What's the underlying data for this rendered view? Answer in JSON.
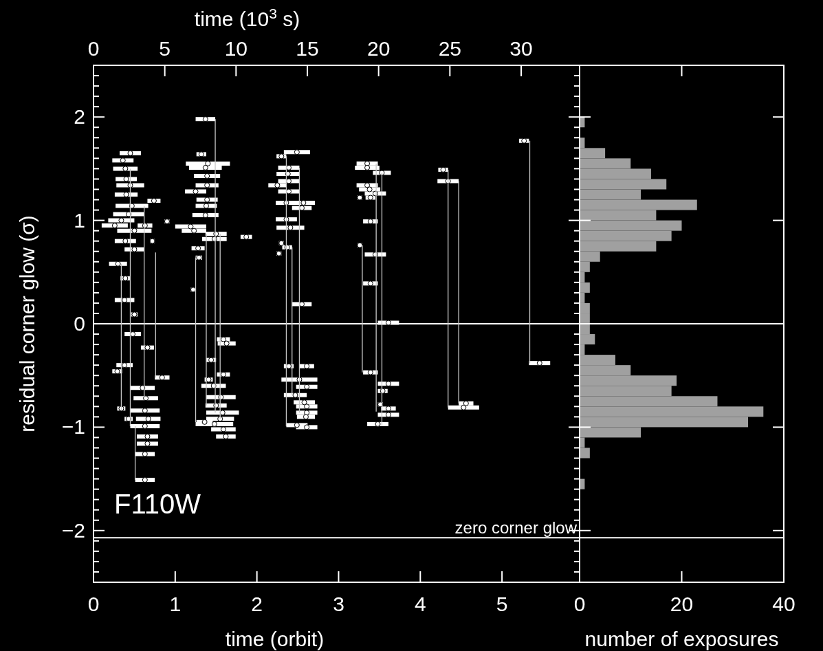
{
  "chart_data": [
    {
      "type": "scatter",
      "xlabel": "time (orbit)",
      "ylabel": "residual corner glow (σ)",
      "x2label": "time (10$^{3}$ s)",
      "xlim": [
        0,
        5.95
      ],
      "xticks": [
        0,
        1,
        2,
        3,
        4,
        5
      ],
      "x2lim": [
        0,
        34.1
      ],
      "x2ticks": [
        0,
        5,
        10,
        15,
        20,
        25,
        30
      ],
      "ylim": [
        -2.5,
        2.5
      ],
      "yticks": [
        {
          "value": -2.5,
          "label": null
        },
        {
          "value": -2.4,
          "label": null
        },
        {
          "value": -2.3,
          "label": null
        },
        {
          "value": -2.2,
          "label": null
        },
        {
          "value": -2.1,
          "label": null
        },
        -2,
        {
          "value": -1.9,
          "label": null
        },
        {
          "value": -1.8,
          "label": null
        },
        {
          "value": -1.7,
          "label": null
        },
        {
          "value": -1.6,
          "label": null
        },
        {
          "value": -1.5,
          "label": null
        },
        {
          "value": -1.4,
          "label": null
        },
        {
          "value": -1.3,
          "label": null
        },
        {
          "value": -1.2,
          "label": null
        },
        {
          "value": -1.1,
          "label": null
        },
        -1,
        {
          "value": -0.9,
          "label": null
        },
        {
          "value": -0.8,
          "label": null
        },
        {
          "value": -0.7,
          "label": null
        },
        {
          "value": -0.6,
          "label": null
        },
        {
          "value": -0.5,
          "label": null
        },
        {
          "value": -0.4,
          "label": null
        },
        {
          "value": -0.3,
          "label": null
        },
        {
          "value": -0.2,
          "label": null
        },
        {
          "value": -0.1,
          "label": null
        },
        0,
        {
          "value": 0.1,
          "label": null
        },
        {
          "value": 0.2,
          "label": null
        },
        {
          "value": 0.3,
          "label": null
        },
        {
          "value": 0.4,
          "label": null
        },
        {
          "value": 0.5,
          "label": null
        },
        {
          "value": 0.6,
          "label": null
        },
        {
          "value": 0.7,
          "label": null
        },
        {
          "value": 0.8,
          "label": null
        },
        {
          "value": 0.9,
          "label": null
        },
        1,
        {
          "value": 1.1,
          "label": null
        },
        {
          "value": 1.2,
          "label": null
        },
        {
          "value": 1.3,
          "label": null
        },
        {
          "value": 1.4,
          "label": null
        },
        {
          "value": 1.5,
          "label": null
        },
        {
          "value": 1.6,
          "label": null
        },
        {
          "value": 1.7,
          "label": null
        },
        {
          "value": 1.8,
          "label": null
        },
        {
          "value": 1.9,
          "label": null
        },
        2,
        {
          "value": 2.1,
          "label": null
        },
        {
          "value": 2.2,
          "label": null
        },
        {
          "value": 2.3,
          "label": null
        },
        {
          "value": 2.4,
          "label": null
        },
        {
          "value": 2.5,
          "label": null
        }
      ],
      "annotations": [
        "F110W"
      ],
      "ref_lines": [
        {
          "axis": "y",
          "value": 0,
          "color": "#ffffff"
        },
        {
          "axis": "y",
          "value": -2.07,
          "label": "zero corner glow",
          "color": "#ffffff"
        }
      ],
      "series": [
        {
          "type": "line",
          "color": "#c8c8c8",
          "x": [
            5.34,
            5.34,
            null,
            4.47,
            4.47,
            null,
            4.34,
            4.34,
            null,
            3.29,
            3.29,
            null,
            3.46,
            3.46,
            null,
            3.53,
            3.53,
            null,
            2.36,
            2.36,
            null,
            2.52,
            2.52,
            null,
            2.43,
            2.43,
            null,
            1.49,
            1.49,
            null,
            1.25,
            1.25,
            null,
            1.38,
            1.38,
            null,
            1.55,
            1.55,
            null,
            0.51,
            0.51,
            null,
            0.62,
            0.62,
            null,
            0.76,
            0.76,
            null,
            0.34,
            0.34,
            null,
            0.45,
            0.45
          ],
          "values": [
            1.77,
            -0.38,
            null,
            1.38,
            -0.77,
            null,
            1.49,
            -0.81,
            null,
            0.76,
            -0.47,
            null,
            1.55,
            -0.85,
            null,
            1.46,
            -0.98,
            null,
            1.62,
            -0.99,
            null,
            1.51,
            -0.86,
            null,
            0.74,
            -0.69,
            null,
            1.98,
            -0.86,
            null,
            0.64,
            -0.95,
            null,
            0.87,
            -0.79,
            null,
            0.87,
            -0.92,
            null,
            -0.99,
            -1.51,
            null,
            1.14,
            -0.72,
            null,
            0.69,
            -0.52,
            null,
            0.58,
            -0.84,
            null,
            1.5,
            -0.99
          ]
        },
        {
          "type": "scatter",
          "color": "#ffffff",
          "x": [
            0.45,
            0.36,
            0.39,
            0.4,
            0.45,
            0.4,
            0.74,
            0.47,
            0.43,
            0.34,
            0.26,
            0.63,
            0.5,
            0.39,
            0.72,
            0.5,
            0.3,
            0.39,
            0.38,
            0.5,
            0.48,
            0.66,
            0.38,
            0.29,
            0.84,
            0.6,
            0.64,
            0.34,
            0.63,
            0.43,
            0.67,
            0.63,
            0.66,
            0.66,
            0.63,
            0.63,
            0.9,
            1.37,
            1.32,
            1.4,
            1.37,
            1.39,
            1.39,
            1.25,
            1.39,
            1.38,
            1.37,
            1.19,
            1.23,
            1.5,
            1.48,
            1.28,
            1.29,
            1.87,
            1.22,
            1.59,
            1.63,
            1.44,
            1.59,
            1.41,
            1.47,
            1.56,
            1.5,
            1.58,
            1.55,
            1.36,
            1.48,
            1.59,
            1.62,
            2.49,
            2.3,
            2.39,
            2.38,
            2.39,
            2.25,
            2.39,
            2.36,
            2.57,
            2.55,
            2.36,
            2.41,
            2.3,
            2.37,
            2.27,
            2.55,
            2.39,
            2.61,
            2.52,
            2.61,
            2.47,
            2.58,
            2.61,
            2.61,
            2.6,
            2.49,
            2.61,
            3.35,
            3.35,
            3.53,
            3.35,
            3.38,
            3.45,
            3.26,
            3.39,
            3.39,
            3.26,
            3.45,
            3.39,
            3.61,
            3.39,
            3.61,
            3.54,
            3.51,
            3.61,
            3.61,
            3.48,
            4.28,
            4.34,
            4.56,
            4.53,
            5.27,
            5.46
          ],
          "values": [
            1.65,
            1.58,
            1.5,
            1.4,
            1.34,
            1.25,
            1.19,
            1.14,
            1.06,
            1.0,
            0.95,
            0.95,
            0.9,
            0.8,
            0.8,
            0.72,
            0.58,
            0.44,
            0.23,
            0.09,
            -0.1,
            -0.23,
            -0.4,
            -0.46,
            -0.52,
            -0.62,
            -0.72,
            -0.82,
            -0.84,
            -0.92,
            -0.92,
            -0.99,
            -1.09,
            -1.16,
            -1.26,
            -1.51,
            0.99,
            1.98,
            1.64,
            1.55,
            1.51,
            1.43,
            1.34,
            1.28,
            1.2,
            1.14,
            1.05,
            0.94,
            0.9,
            0.87,
            0.82,
            0.73,
            0.64,
            0.84,
            0.33,
            -0.15,
            -0.19,
            -0.35,
            -0.49,
            -0.54,
            -0.6,
            -0.71,
            -0.79,
            -0.86,
            -0.92,
            -0.95,
            -0.97,
            -1.02,
            -1.09,
            1.66,
            1.62,
            1.51,
            1.45,
            1.38,
            1.34,
            1.28,
            1.17,
            1.17,
            1.12,
            1.01,
            0.93,
            0.78,
            0.74,
            0.68,
            0.19,
            -0.41,
            -0.41,
            -0.54,
            -0.61,
            -0.69,
            -0.76,
            -0.8,
            -0.86,
            -0.9,
            -0.98,
            -1.0,
            1.55,
            1.51,
            1.46,
            1.34,
            1.3,
            1.26,
            1.22,
            1.22,
            0.99,
            0.76,
            0.67,
            0.39,
            0.01,
            -0.47,
            -0.58,
            -0.65,
            -0.78,
            -0.82,
            -0.88,
            -0.97,
            1.49,
            1.38,
            -0.77,
            -0.81,
            1.77,
            -0.38
          ],
          "xerrors": [
            0.13,
            0.13,
            0.15,
            0.13,
            0.17,
            0.14,
            0.08,
            0.2,
            0.19,
            0.16,
            0.16,
            0.09,
            0.21,
            0.13,
            0.03,
            0.12,
            0.11,
            0.06,
            0.12,
            0.04,
            0.1,
            0.08,
            0.1,
            0.06,
            0.09,
            0.15,
            0.15,
            0.05,
            0.18,
            0.05,
            0.15,
            0.18,
            0.13,
            0.13,
            0.12,
            0.12,
            0.03,
            0.12,
            0.06,
            0.27,
            0.2,
            0.16,
            0.14,
            0.13,
            0.13,
            0.13,
            0.16,
            0.19,
            0.15,
            0.13,
            0.15,
            0.08,
            0.04,
            0.07,
            0.03,
            0.08,
            0.11,
            0.06,
            0.08,
            0.05,
            0.15,
            0.18,
            0.13,
            0.2,
            0.17,
            0.1,
            0.23,
            0.15,
            0.12,
            0.16,
            0.06,
            0.13,
            0.14,
            0.13,
            0.11,
            0.13,
            0.13,
            0.14,
            0.12,
            0.13,
            0.17,
            0.03,
            0.06,
            0.03,
            0.12,
            0.06,
            0.09,
            0.22,
            0.13,
            0.14,
            0.13,
            0.13,
            0.13,
            0.11,
            0.13,
            0.13,
            0.13,
            0.15,
            0.11,
            0.13,
            0.13,
            0.13,
            0.03,
            0.06,
            0.09,
            0.03,
            0.13,
            0.09,
            0.13,
            0.09,
            0.13,
            0.06,
            0.03,
            0.09,
            0.13,
            0.13,
            0.06,
            0.13,
            0.09,
            0.19,
            0.06,
            0.13
          ]
        }
      ]
    },
    {
      "type": "histogram",
      "orientation": "horizontal",
      "color": "#a0a0a0",
      "xlabel": "number of exposures",
      "tick_labels": "x",
      "xlim": [
        0,
        40
      ],
      "xticks": [
        0,
        20,
        40
      ],
      "ylim": [
        -2.5,
        2.5
      ],
      "yticks": [
        -2,
        -1,
        0,
        1,
        2
      ],
      "bins": [
        -1.6,
        -1.5,
        -1.4,
        -1.3,
        -1.2,
        -1.1,
        -1.0,
        -0.9,
        -0.8,
        -0.7,
        -0.6,
        -0.5,
        -0.4,
        -0.3,
        -0.2,
        -0.1,
        0,
        0.1,
        0.2,
        0.3,
        0.4,
        0.5,
        0.6,
        0.7,
        0.8,
        0.9,
        1.0,
        1.1,
        1.2,
        1.3,
        1.4,
        1.5,
        1.6,
        1.7,
        1.8,
        1.9,
        2.0
      ],
      "values": [
        1,
        0,
        0,
        2,
        1,
        12,
        33,
        36,
        27,
        18,
        19,
        10,
        7,
        1,
        3,
        2,
        2,
        2,
        1,
        2,
        1,
        2,
        4,
        15,
        18,
        20,
        15,
        23,
        12,
        17,
        14,
        10,
        5,
        1,
        0,
        1
      ],
      "ref_lines": [
        {
          "axis": "y",
          "value": 0,
          "color": "#ffffff"
        },
        {
          "axis": "y",
          "value": -2.07,
          "color": "#ffffff"
        }
      ]
    }
  ]
}
